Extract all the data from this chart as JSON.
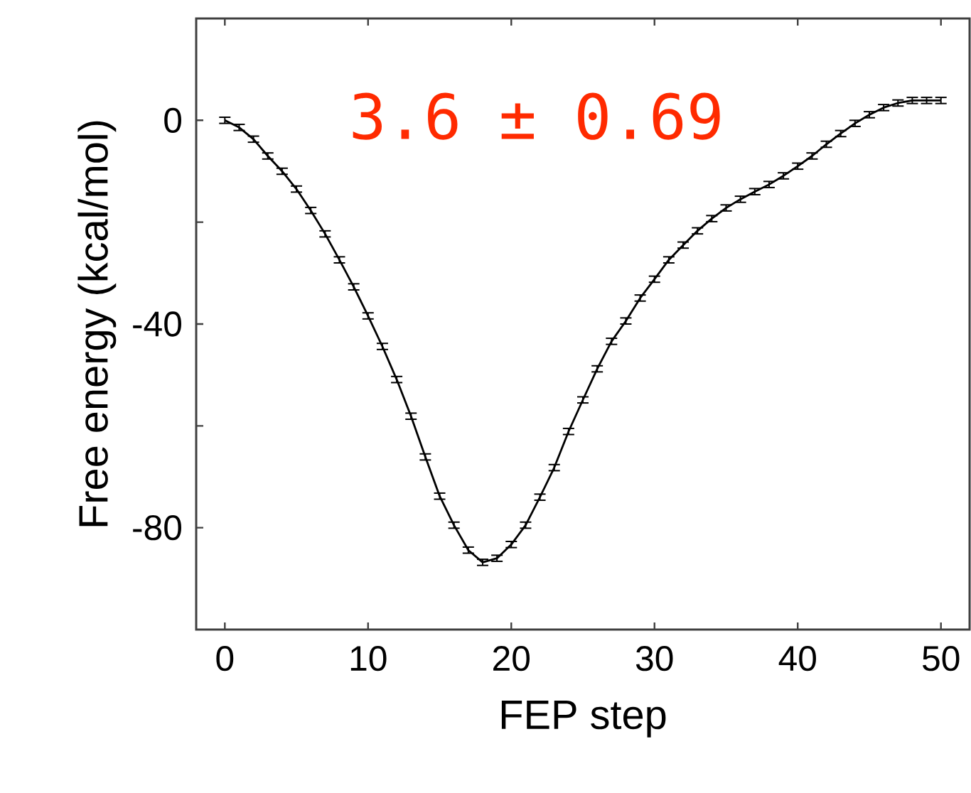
{
  "chart_data": {
    "type": "line",
    "xlabel": "FEP step",
    "ylabel": "Free energy (kcal/mol)",
    "annotations": [
      "3.6 ± 0.69"
    ],
    "x": [
      0,
      1,
      2,
      3,
      4,
      5,
      6,
      7,
      8,
      9,
      10,
      11,
      12,
      13,
      14,
      15,
      16,
      17,
      18,
      19,
      20,
      21,
      22,
      23,
      24,
      25,
      26,
      27,
      28,
      29,
      30,
      31,
      32,
      33,
      34,
      35,
      36,
      37,
      38,
      39,
      40,
      41,
      42,
      43,
      44,
      45,
      46,
      47,
      48,
      49,
      50
    ],
    "series": [
      {
        "color": "#000000",
        "values": [
          0,
          -1.4,
          -3.7,
          -7,
          -10,
          -13.5,
          -17.7,
          -22.3,
          -27.4,
          -32.7,
          -38.4,
          -44.4,
          -50.9,
          -58.1,
          -66.1,
          -73.8,
          -79.5,
          -84.4,
          -86.8,
          -86,
          -83.3,
          -79.5,
          -74,
          -68.2,
          -61.1,
          -54.9,
          -48.8,
          -43.4,
          -39.4,
          -34.9,
          -31.2,
          -27.4,
          -24.5,
          -21.7,
          -19.3,
          -17.2,
          -15.5,
          -14,
          -12.6,
          -10.9,
          -9,
          -7,
          -4.7,
          -2.6,
          -0.6,
          1.1,
          2.5,
          3.4,
          3.9,
          3.9,
          3.9
        ],
        "errors": [
          0.6,
          0.6,
          0.6,
          0.6,
          0.6,
          0.6,
          0.6,
          0.6,
          0.6,
          0.6,
          0.6,
          0.6,
          0.6,
          0.6,
          0.6,
          0.6,
          0.6,
          0.6,
          0.6,
          0.6,
          0.6,
          0.6,
          0.6,
          0.6,
          0.6,
          0.6,
          0.6,
          0.6,
          0.6,
          0.6,
          0.6,
          0.6,
          0.6,
          0.6,
          0.6,
          0.6,
          0.6,
          0.6,
          0.6,
          0.6,
          0.6,
          0.6,
          0.6,
          0.6,
          0.6,
          0.6,
          0.6,
          0.6,
          0.6,
          0.6,
          0.6
        ]
      }
    ],
    "xlim": [
      -2,
      52
    ],
    "ylim": [
      -100,
      20
    ],
    "xticks": [
      0,
      10,
      20,
      30,
      40,
      50
    ],
    "yticks": [
      0,
      {
        "value": -20,
        "label": null
      },
      -40,
      {
        "value": -60,
        "label": null
      },
      -80
    ],
    "marker": "none",
    "line_style": "solid"
  }
}
